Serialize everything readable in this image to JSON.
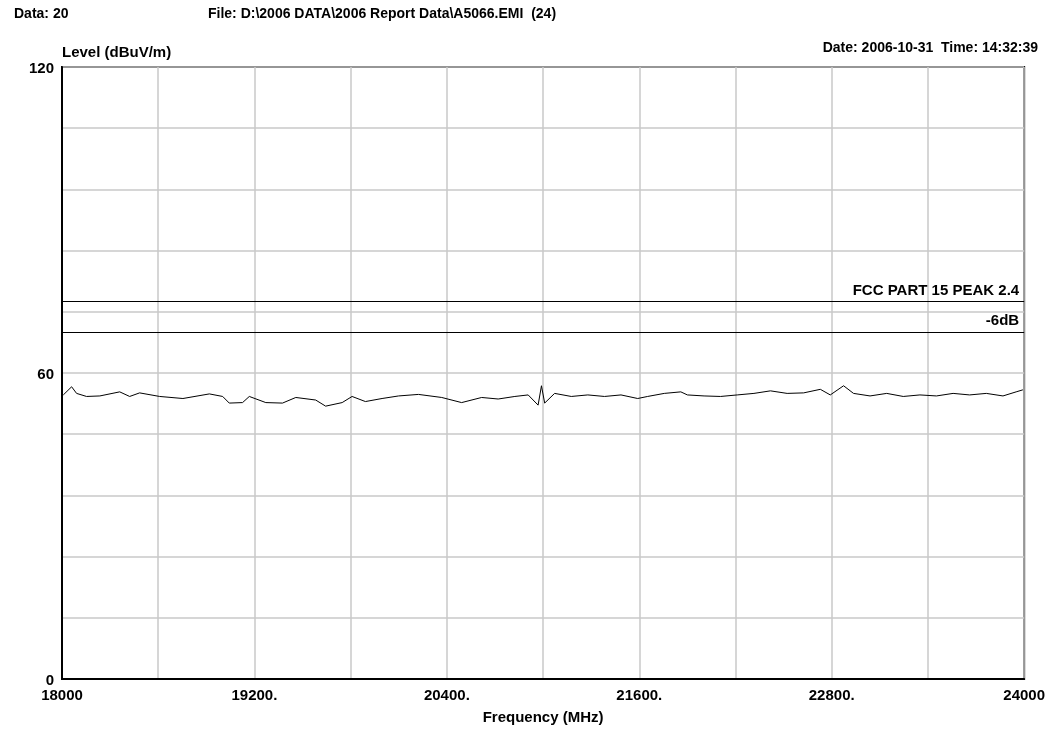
{
  "chart_data": {
    "type": "line",
    "title": "File: D:\\2006 DATA\\2006 Report Data\\A5066.EMI  (24)",
    "xlabel": "Frequency (MHz)",
    "ylabel": "Level (dBuV/m)",
    "annotations": [
      "Data: 20",
      "Date: 2006-10-31  Time: 14:32:39"
    ],
    "x": [
      18008,
      18060,
      18091,
      18153,
      18236,
      18360,
      18422,
      18484,
      18609,
      18754,
      18919,
      19002,
      19043,
      19126,
      19168,
      19271,
      19375,
      19458,
      19582,
      19644,
      19747,
      19809,
      19892,
      19996,
      20099,
      20223,
      20368,
      20492,
      20617,
      20720,
      20824,
      20907,
      20969,
      20990,
      21010,
      21072,
      21176,
      21279,
      21383,
      21486,
      21590,
      21652,
      21756,
      21859,
      21900,
      22004,
      22107,
      22211,
      22315,
      22418,
      22522,
      22625,
      22729,
      22791,
      22874,
      22936,
      23039,
      23143,
      23246,
      23350,
      23453,
      23557,
      23660,
      23764,
      23868,
      23950,
      23992
    ],
    "series": [
      {
        "color": "#000000",
        "values": [
          55.7,
          57.3,
          56.0,
          55.4,
          55.5,
          56.3,
          55.4,
          56.1,
          55.4,
          55.0,
          55.9,
          55.4,
          54.1,
          54.2,
          55.4,
          54.2,
          54.1,
          55.2,
          54.7,
          53.5,
          54.2,
          55.4,
          54.4,
          55.0,
          55.5,
          55.8,
          55.2,
          54.2,
          55.2,
          54.9,
          55.4,
          55.7,
          53.7,
          57.5,
          54.1,
          56.0,
          55.4,
          55.7,
          55.4,
          55.7,
          55.0,
          55.4,
          56.0,
          56.3,
          55.7,
          55.5,
          55.4,
          55.7,
          56.0,
          56.5,
          56.0,
          56.1,
          56.8,
          55.7,
          57.5,
          56.0,
          55.5,
          56.0,
          55.4,
          55.7,
          55.5,
          56.0,
          55.7,
          56.0,
          55.5,
          56.3,
          56.7
        ]
      }
    ],
    "xlim": [
      18000,
      24000
    ],
    "xticks": [
      18000,
      {
        "value": 18600,
        "label": null
      },
      {
        "value": 19200,
        "label": "19200."
      },
      {
        "value": 19800,
        "label": null
      },
      {
        "value": 20400,
        "label": "20400."
      },
      {
        "value": 21000,
        "label": null
      },
      {
        "value": 21600,
        "label": "21600."
      },
      {
        "value": 22200,
        "label": null
      },
      {
        "value": 22800,
        "label": "22800."
      },
      {
        "value": 23400,
        "label": null
      },
      24000
    ],
    "ylim": [
      0,
      120
    ],
    "yticks": [
      0,
      {
        "value": 12,
        "label": null
      },
      {
        "value": 24,
        "label": null
      },
      {
        "value": 36,
        "label": null
      },
      {
        "value": 48,
        "label": null
      },
      60,
      {
        "value": 72,
        "label": null
      },
      {
        "value": 84,
        "label": null
      },
      {
        "value": 96,
        "label": null
      },
      {
        "value": 108,
        "label": null
      },
      120
    ],
    "ref_lines": [
      {
        "axis": "y",
        "value": 74,
        "label": "FCC PART 15 PEAK 2.4",
        "color": "#000000"
      },
      {
        "axis": "y",
        "value": 68,
        "label": "-6dB",
        "color": "#000000"
      }
    ],
    "grid": true,
    "marker": "none",
    "line_style": "solid"
  }
}
